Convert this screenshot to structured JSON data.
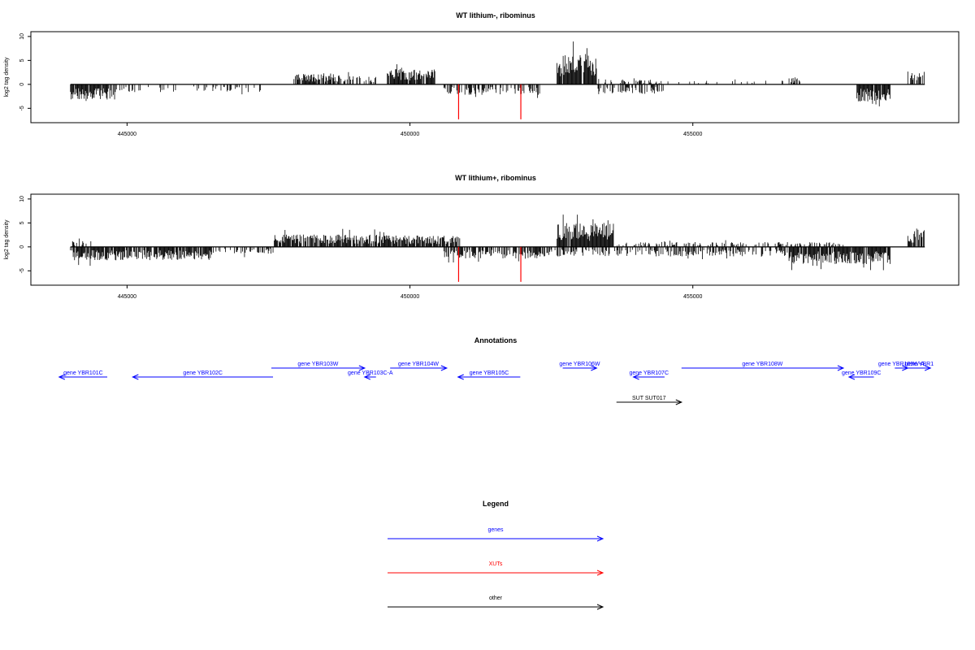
{
  "colors": {
    "genes": "#0000ff",
    "xuts": "#ff0000",
    "other": "#000000",
    "frame": "#000000"
  },
  "panels": [
    {
      "title": "WT lithium-, ribominus",
      "ylabel": "log2 tag density",
      "yticks": [
        10,
        5,
        0,
        -5
      ],
      "ylim": [
        -8,
        11
      ],
      "xlim": [
        443300,
        459700
      ],
      "xticks": [
        "445000",
        "450000",
        "455000"
      ],
      "xticks_num": [
        445000,
        450000,
        455000
      ],
      "red_markers": [
        450860,
        451960
      ],
      "red_depth": -7.3,
      "pos_regions": [
        [
          447950,
          448650,
          2.3,
          0.8
        ],
        [
          448650,
          449400,
          1.8,
          0.5
        ],
        [
          449600,
          450450,
          3.2,
          0.9
        ],
        [
          452600,
          453300,
          6.5,
          0.95
        ],
        [
          453300,
          454500,
          1.2,
          0.25
        ],
        [
          454500,
          456700,
          0.8,
          0.08
        ],
        [
          456700,
          456900,
          1.4,
          0.6
        ],
        [
          458800,
          459100,
          2.8,
          0.8
        ]
      ],
      "neg_regions": [
        [
          444000,
          444800,
          -3.2,
          0.9
        ],
        [
          444800,
          447400,
          -1.6,
          0.25
        ],
        [
          450600,
          452300,
          -2.2,
          0.5
        ],
        [
          453300,
          454500,
          -2.0,
          0.45
        ],
        [
          457900,
          458500,
          -3.6,
          0.95
        ]
      ]
    },
    {
      "title": "WT lithium+, ribominus",
      "ylabel": "log2 tag density",
      "yticks": [
        10,
        5,
        0,
        -5
      ],
      "ylim": [
        -8,
        11
      ],
      "xlim": [
        443300,
        459700
      ],
      "xticks": [
        "445000",
        "450000",
        "455000"
      ],
      "xticks_num": [
        445000,
        450000,
        455000
      ],
      "red_markers": [
        450860,
        451960
      ],
      "red_depth": -7.3,
      "pos_regions": [
        [
          444000,
          444400,
          1.2,
          0.4
        ],
        [
          447600,
          449500,
          2.6,
          0.9
        ],
        [
          449500,
          450900,
          2.4,
          0.85
        ],
        [
          452600,
          453600,
          5.0,
          0.95
        ],
        [
          453600,
          457700,
          1.0,
          0.3
        ],
        [
          458800,
          459100,
          3.6,
          0.9
        ]
      ],
      "neg_regions": [
        [
          444000,
          446500,
          -2.8,
          0.85
        ],
        [
          446500,
          447600,
          -1.5,
          0.4
        ],
        [
          450600,
          452300,
          -2.4,
          0.7
        ],
        [
          452300,
          456700,
          -2.0,
          0.45
        ],
        [
          456700,
          458500,
          -3.6,
          0.95
        ]
      ]
    }
  ],
  "annotations": {
    "title": "Annotations",
    "items": [
      {
        "label": "gene YBR101C",
        "start": 444650,
        "end": 443800,
        "row": 2,
        "kind": "genes"
      },
      {
        "label": "gene YBR102C",
        "start": 447580,
        "end": 445100,
        "row": 2,
        "kind": "genes"
      },
      {
        "label": "gene YBR103W",
        "start": 447550,
        "end": 449200,
        "row": 1,
        "kind": "genes"
      },
      {
        "label": "gene YBR103C-A",
        "start": 449400,
        "end": 449200,
        "row": 2,
        "kind": "genes"
      },
      {
        "label": "gene YBR104W",
        "start": 449650,
        "end": 450650,
        "row": 1,
        "kind": "genes"
      },
      {
        "label": "gene YBR105C",
        "start": 451950,
        "end": 450850,
        "row": 2,
        "kind": "genes"
      },
      {
        "label": "gene YBR106W",
        "start": 452700,
        "end": 453300,
        "row": 1,
        "kind": "genes"
      },
      {
        "label": "gene YBR107C",
        "start": 454500,
        "end": 453950,
        "row": 2,
        "kind": "genes"
      },
      {
        "label": "gene YBR108W",
        "start": 454800,
        "end": 457660,
        "row": 1,
        "kind": "genes"
      },
      {
        "label": "gene YBR109C",
        "start": 458200,
        "end": 457760,
        "row": 2,
        "kind": "genes"
      },
      {
        "label": "gene YBR109W-A",
        "start": 458570,
        "end": 458800,
        "row": 1,
        "kind": "genes"
      },
      {
        "label": "gene YBR1",
        "start": 458800,
        "end": 459200,
        "row": 1,
        "kind": "genes"
      },
      {
        "label": "SUT SUT017",
        "start": 453650,
        "end": 454800,
        "row": 3,
        "kind": "other"
      }
    ]
  },
  "legend": {
    "title": "Legend",
    "items": [
      {
        "label": "genes",
        "kind": "genes"
      },
      {
        "label": "XUTs",
        "kind": "xuts"
      },
      {
        "label": "other",
        "kind": "other"
      }
    ]
  }
}
